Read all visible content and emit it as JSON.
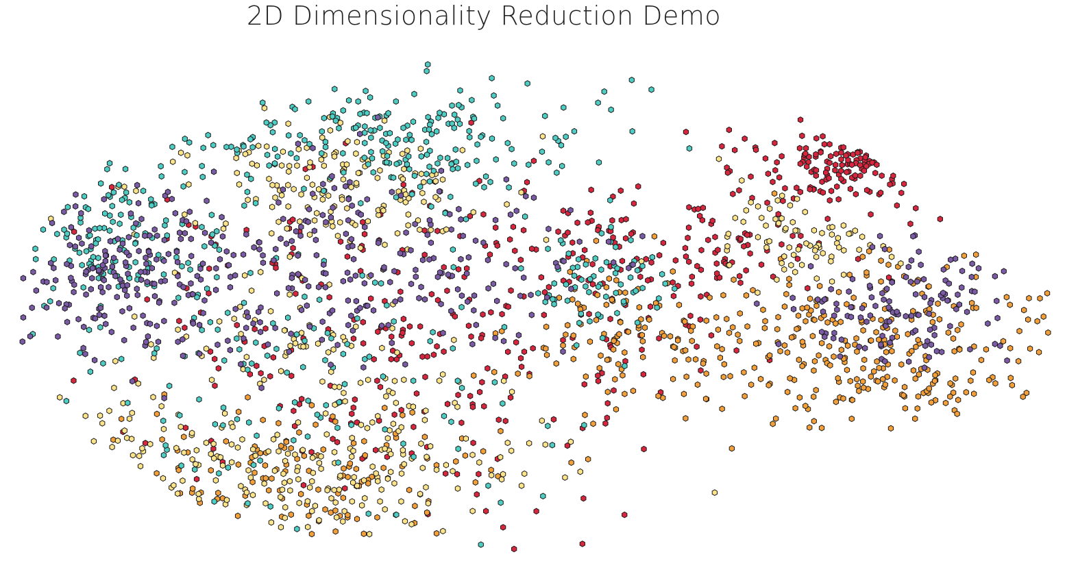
{
  "chart_data": {
    "type": "scatter",
    "title": "2D Dimensionality Reduction Demo",
    "xlabel": "",
    "ylabel": "",
    "xlim": [
      0,
      1
    ],
    "ylim": [
      0,
      1
    ],
    "grid": false,
    "axes_visible": false,
    "marker": "hexagon",
    "class_colors": [
      "#d7263d",
      "#f4a03a",
      "#fde38a",
      "#4ecdc4",
      "#7b5ba6"
    ],
    "points_per_class": 520,
    "clusters": [
      {
        "class": 0,
        "cx": 0.83,
        "cy": 0.79,
        "sx": 0.06,
        "sy": 0.04,
        "w": 0.3
      },
      {
        "class": 0,
        "cx": 0.4,
        "cy": 0.45,
        "sx": 0.17,
        "sy": 0.18,
        "w": 0.55
      },
      {
        "class": 0,
        "cx": 0.65,
        "cy": 0.62,
        "sx": 0.08,
        "sy": 0.05,
        "w": 0.15
      },
      {
        "class": 1,
        "cx": 0.83,
        "cy": 0.42,
        "sx": 0.11,
        "sy": 0.09,
        "w": 0.6
      },
      {
        "class": 1,
        "cx": 0.27,
        "cy": 0.16,
        "sx": 0.11,
        "sy": 0.07,
        "w": 0.25
      },
      {
        "class": 1,
        "cx": 0.57,
        "cy": 0.45,
        "sx": 0.04,
        "sy": 0.06,
        "w": 0.15
      },
      {
        "class": 2,
        "cx": 0.3,
        "cy": 0.75,
        "sx": 0.08,
        "sy": 0.07,
        "w": 0.3
      },
      {
        "class": 2,
        "cx": 0.26,
        "cy": 0.18,
        "sx": 0.12,
        "sy": 0.07,
        "w": 0.4
      },
      {
        "class": 2,
        "cx": 0.76,
        "cy": 0.64,
        "sx": 0.05,
        "sy": 0.05,
        "w": 0.15
      },
      {
        "class": 2,
        "cx": 0.29,
        "cy": 0.4,
        "sx": 0.1,
        "sy": 0.1,
        "w": 0.15
      },
      {
        "class": 3,
        "cx": 0.37,
        "cy": 0.85,
        "sx": 0.12,
        "sy": 0.06,
        "w": 0.4
      },
      {
        "class": 3,
        "cx": 0.08,
        "cy": 0.65,
        "sx": 0.05,
        "sy": 0.07,
        "w": 0.2
      },
      {
        "class": 3,
        "cx": 0.23,
        "cy": 0.4,
        "sx": 0.13,
        "sy": 0.18,
        "w": 0.3
      },
      {
        "class": 3,
        "cx": 0.56,
        "cy": 0.55,
        "sx": 0.04,
        "sy": 0.05,
        "w": 0.1
      },
      {
        "class": 4,
        "cx": 0.09,
        "cy": 0.57,
        "sx": 0.05,
        "sy": 0.08,
        "w": 0.3
      },
      {
        "class": 4,
        "cx": 0.3,
        "cy": 0.58,
        "sx": 0.12,
        "sy": 0.1,
        "w": 0.45
      },
      {
        "class": 4,
        "cx": 0.86,
        "cy": 0.5,
        "sx": 0.06,
        "sy": 0.06,
        "w": 0.25
      }
    ]
  }
}
